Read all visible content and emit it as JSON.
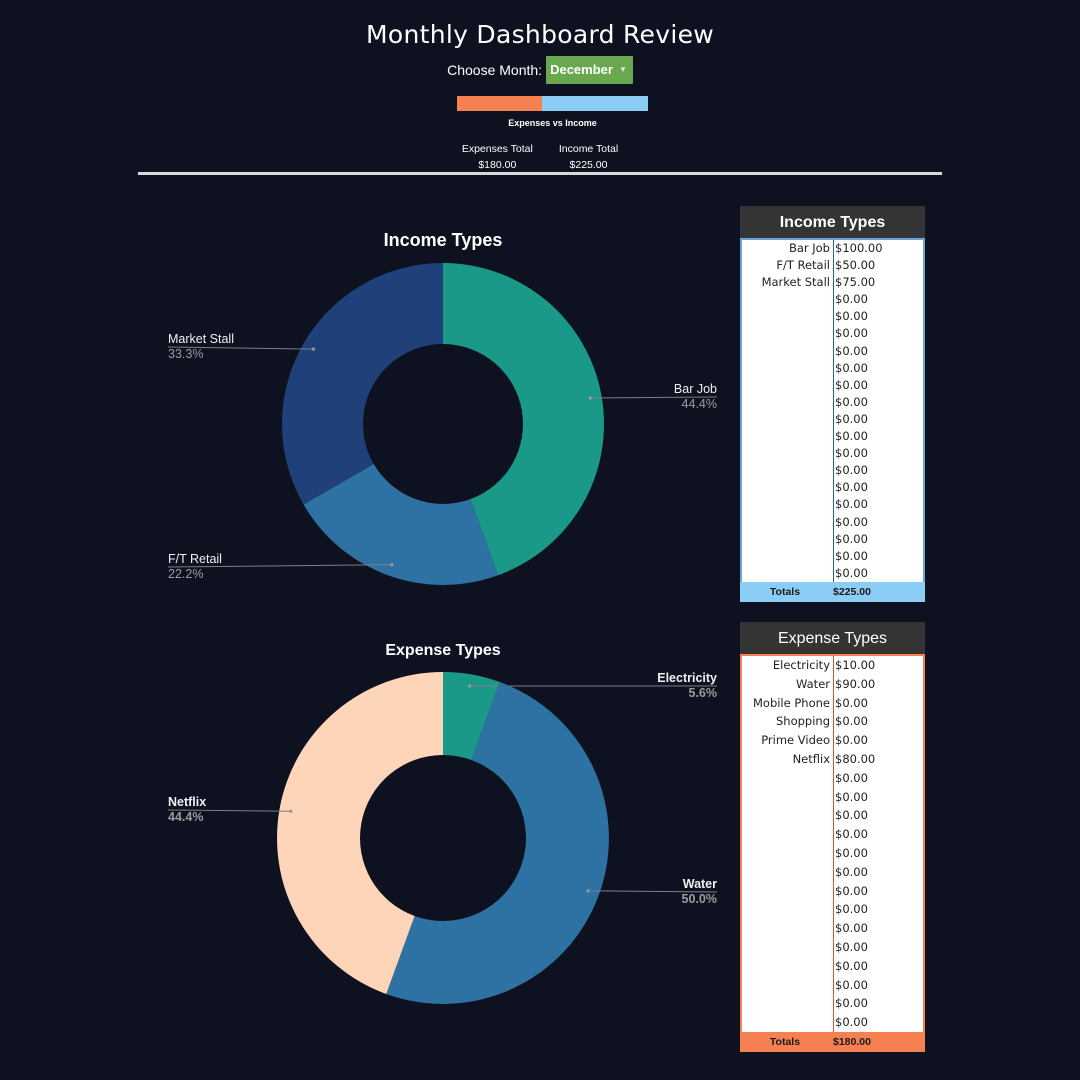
{
  "page": {
    "title": "Monthly Dashboard Review",
    "choose_month_label": "Choose Month:",
    "selected_month": "December",
    "ratio_label": "Expenses vs Income",
    "expenses_total_label": "Expenses Total",
    "expenses_total_value": "$180.00",
    "income_total_label": "Income Total",
    "income_total_value": "$225.00"
  },
  "colors": {
    "background": "#0e1220",
    "expense_accent": "#f58152",
    "income_accent": "#8ccdf6",
    "income_table_border": "#6fa3d8",
    "month_select": "#6aa84f"
  },
  "ratio": {
    "expenses": 180,
    "income": 225
  },
  "income_table": {
    "title": "Income Types",
    "rows": [
      {
        "name": "Bar Job",
        "value": "$100.00"
      },
      {
        "name": "F/T Retail",
        "value": "$50.00"
      },
      {
        "name": "Market Stall",
        "value": "$75.00"
      },
      {
        "name": "",
        "value": "$0.00"
      },
      {
        "name": "",
        "value": "$0.00"
      },
      {
        "name": "",
        "value": "$0.00"
      },
      {
        "name": "",
        "value": "$0.00"
      },
      {
        "name": "",
        "value": "$0.00"
      },
      {
        "name": "",
        "value": "$0.00"
      },
      {
        "name": "",
        "value": "$0.00"
      },
      {
        "name": "",
        "value": "$0.00"
      },
      {
        "name": "",
        "value": "$0.00"
      },
      {
        "name": "",
        "value": "$0.00"
      },
      {
        "name": "",
        "value": "$0.00"
      },
      {
        "name": "",
        "value": "$0.00"
      },
      {
        "name": "",
        "value": "$0.00"
      },
      {
        "name": "",
        "value": "$0.00"
      },
      {
        "name": "",
        "value": "$0.00"
      },
      {
        "name": "",
        "value": "$0.00"
      },
      {
        "name": "",
        "value": "$0.00"
      }
    ],
    "totals_label": "Totals",
    "totals_value": "$225.00"
  },
  "expense_table": {
    "title": "Expense Types",
    "rows": [
      {
        "name": "Electricity",
        "value": "$10.00"
      },
      {
        "name": "Water",
        "value": "$90.00"
      },
      {
        "name": "Mobile Phone",
        "value": "$0.00"
      },
      {
        "name": "Shopping",
        "value": "$0.00"
      },
      {
        "name": "Prime Video",
        "value": "$0.00"
      },
      {
        "name": "Netflix",
        "value": "$80.00"
      },
      {
        "name": "",
        "value": "$0.00"
      },
      {
        "name": "",
        "value": "$0.00"
      },
      {
        "name": "",
        "value": "$0.00"
      },
      {
        "name": "",
        "value": "$0.00"
      },
      {
        "name": "",
        "value": "$0.00"
      },
      {
        "name": "",
        "value": "$0.00"
      },
      {
        "name": "",
        "value": "$0.00"
      },
      {
        "name": "",
        "value": "$0.00"
      },
      {
        "name": "",
        "value": "$0.00"
      },
      {
        "name": "",
        "value": "$0.00"
      },
      {
        "name": "",
        "value": "$0.00"
      },
      {
        "name": "",
        "value": "$0.00"
      },
      {
        "name": "",
        "value": "$0.00"
      },
      {
        "name": "",
        "value": "$0.00"
      }
    ],
    "totals_label": "Totals",
    "totals_value": "$180.00"
  },
  "chart_data": [
    {
      "type": "pie",
      "donut": true,
      "title": "Income Types",
      "slices": [
        {
          "label": "Bar Job",
          "value": 100,
          "percent": "44.4%",
          "color": "#1a9988"
        },
        {
          "label": "F/T Retail",
          "value": 50,
          "percent": "22.2%",
          "color": "#2d72a2"
        },
        {
          "label": "Market Stall",
          "value": 75,
          "percent": "33.3%",
          "color": "#1f4079"
        }
      ]
    },
    {
      "type": "pie",
      "donut": true,
      "title": "Expense Types",
      "slices": [
        {
          "label": "Electricity",
          "value": 10,
          "percent": "5.6%",
          "color": "#1a9988"
        },
        {
          "label": "Water",
          "value": 90,
          "percent": "50.0%",
          "color": "#2d72a2"
        },
        {
          "label": "Netflix",
          "value": 80,
          "percent": "44.4%",
          "color": "#fed5b8"
        }
      ]
    }
  ]
}
